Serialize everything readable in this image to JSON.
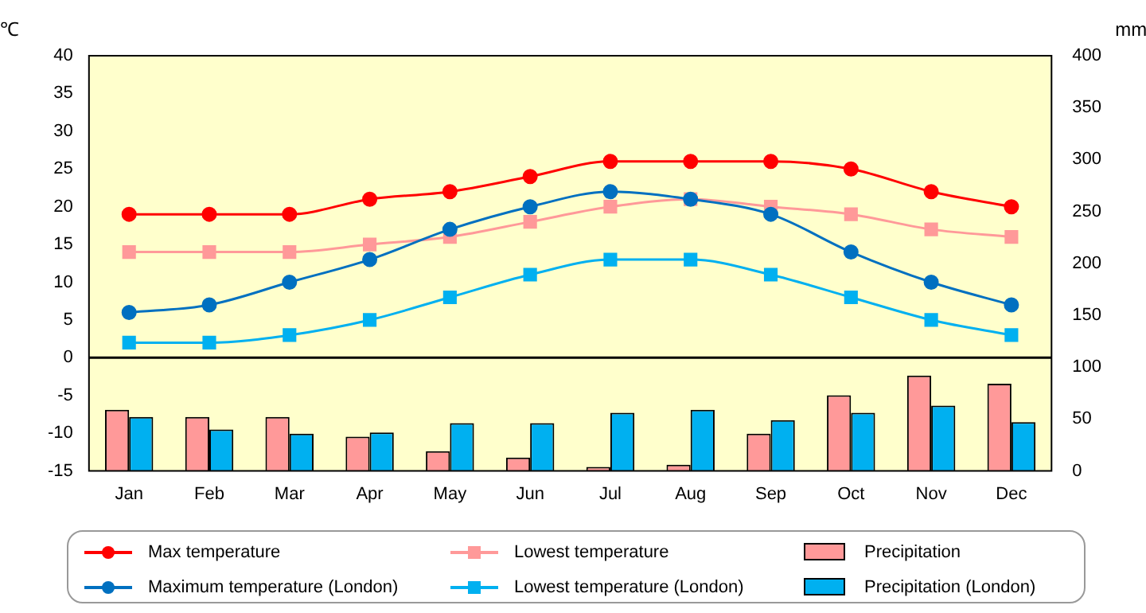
{
  "chart_data": {
    "type": "line",
    "ylabel": "℃",
    "y2label": "mm",
    "categories": [
      "Jan",
      "Feb",
      "Mar",
      "Apr",
      "May",
      "Jun",
      "Jul",
      "Aug",
      "Sep",
      "Oct",
      "Nov",
      "Dec"
    ],
    "series": [
      {
        "name": "Max temperature",
        "color": "#ff0000",
        "marker": "circle",
        "values": [
          19,
          19,
          19,
          21,
          22,
          24,
          26,
          26,
          26,
          25,
          22,
          20
        ]
      },
      {
        "name": "Lowest temperature",
        "color": "#ff9999",
        "marker": "square",
        "values": [
          14,
          14,
          14,
          15,
          16,
          18,
          20,
          21,
          20,
          19,
          17,
          16
        ]
      },
      {
        "name": "Precipitation",
        "type": "bar",
        "axis": "y2",
        "color": "#ff9999",
        "values": [
          59,
          52,
          52,
          33,
          19,
          13,
          4,
          6,
          36,
          73,
          92,
          84
        ]
      },
      {
        "name": "Maximum temperature (London)",
        "color": "#0070c0",
        "marker": "circle",
        "values": [
          6,
          7,
          10,
          13,
          17,
          20,
          22,
          21,
          19,
          14,
          10,
          7
        ]
      },
      {
        "name": "Lowest temperature (London)",
        "color": "#00b0f0",
        "marker": "square",
        "values": [
          2,
          2,
          3,
          5,
          8,
          11,
          13,
          13,
          11,
          8,
          5,
          3
        ]
      },
      {
        "name": "Precipitation (London)",
        "type": "bar",
        "axis": "y2",
        "color": "#00b0f0",
        "values": [
          52,
          40,
          36,
          37,
          46,
          46,
          56,
          59,
          49,
          56,
          63,
          47
        ]
      }
    ],
    "ylim": [
      -15,
      40
    ],
    "yticks": [
      -15,
      -10,
      -5,
      0,
      5,
      10,
      15,
      20,
      25,
      30,
      35,
      40
    ],
    "y2lim": [
      0,
      400
    ],
    "y2ticks": [
      0,
      50,
      100,
      150,
      200,
      250,
      300,
      350,
      400
    ],
    "ref_lines": [
      {
        "axis": "y",
        "value": 0,
        "color": "#000000"
      }
    ],
    "grid": false,
    "legend": "bottom"
  }
}
